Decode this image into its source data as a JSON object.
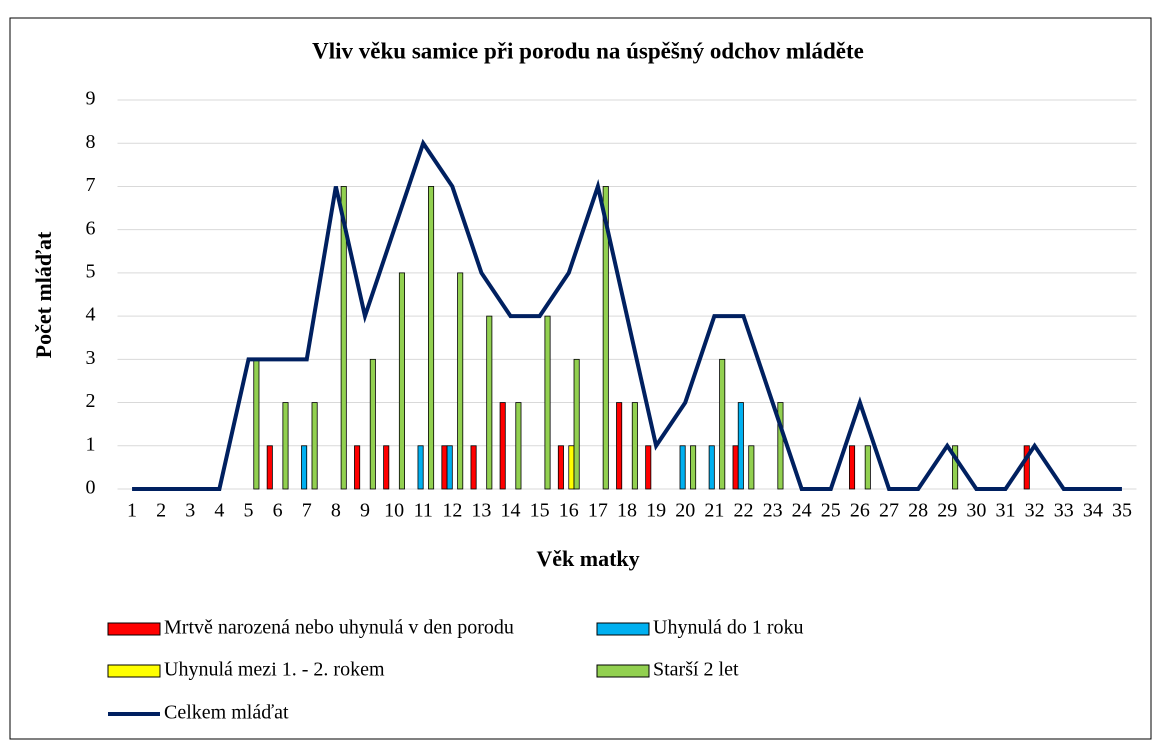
{
  "chart_data": {
    "type": "bar",
    "title": "Vliv věku samice při porodu na úspěšný odchov mláděte",
    "xlabel": "Věk matky",
    "ylabel": "Počet mláďat",
    "categories": [
      "1",
      "2",
      "3",
      "4",
      "5",
      "6",
      "7",
      "8",
      "9",
      "10",
      "11",
      "12",
      "13",
      "14",
      "15",
      "16",
      "17",
      "18",
      "19",
      "20",
      "21",
      "22",
      "23",
      "24",
      "25",
      "26",
      "27",
      "28",
      "29",
      "30",
      "31",
      "32",
      "33",
      "34",
      "35"
    ],
    "series": [
      {
        "name": "Mrtvě narozená nebo uhynulá v den porodu",
        "color": "#ff0000",
        "values": [
          0,
          0,
          0,
          0,
          0,
          1,
          0,
          0,
          1,
          1,
          0,
          1,
          1,
          2,
          0,
          1,
          0,
          2,
          1,
          0,
          0,
          1,
          0,
          0,
          0,
          1,
          0,
          0,
          0,
          0,
          0,
          1,
          0,
          0,
          0
        ]
      },
      {
        "name": "Uhynulá do 1 roku",
        "color": "#00b0f0",
        "values": [
          0,
          0,
          0,
          0,
          0,
          0,
          1,
          0,
          0,
          0,
          1,
          1,
          0,
          0,
          0,
          0,
          0,
          0,
          0,
          1,
          1,
          2,
          0,
          0,
          0,
          0,
          0,
          0,
          0,
          0,
          0,
          0,
          0,
          0,
          0
        ]
      },
      {
        "name": "Uhynulá mezi 1. - 2. rokem",
        "color": "#ffff00",
        "values": [
          0,
          0,
          0,
          0,
          0,
          0,
          0,
          0,
          0,
          0,
          0,
          0,
          0,
          0,
          0,
          1,
          0,
          0,
          0,
          0,
          0,
          0,
          0,
          0,
          0,
          0,
          0,
          0,
          0,
          0,
          0,
          0,
          0,
          0,
          0
        ]
      },
      {
        "name": "Starší 2 let",
        "color": "#92d050",
        "values": [
          0,
          0,
          0,
          0,
          3,
          2,
          2,
          7,
          3,
          5,
          7,
          5,
          4,
          2,
          4,
          3,
          7,
          2,
          0,
          1,
          3,
          1,
          2,
          0,
          0,
          1,
          0,
          0,
          1,
          0,
          0,
          0,
          0,
          0,
          0
        ]
      },
      {
        "name": "Celkem mláďat",
        "type": "line",
        "color": "#002060",
        "values": [
          0,
          0,
          0,
          0,
          3,
          3,
          3,
          7,
          4,
          6,
          8,
          7,
          5,
          4,
          4,
          5,
          7,
          4,
          1,
          2,
          4,
          4,
          2,
          0,
          0,
          2,
          0,
          0,
          1,
          0,
          0,
          1,
          0,
          0,
          0
        ]
      }
    ],
    "ylim": [
      0,
      9
    ],
    "yticks": [
      0,
      1,
      2,
      3,
      4,
      5,
      6,
      7,
      8,
      9
    ],
    "grid": true
  }
}
